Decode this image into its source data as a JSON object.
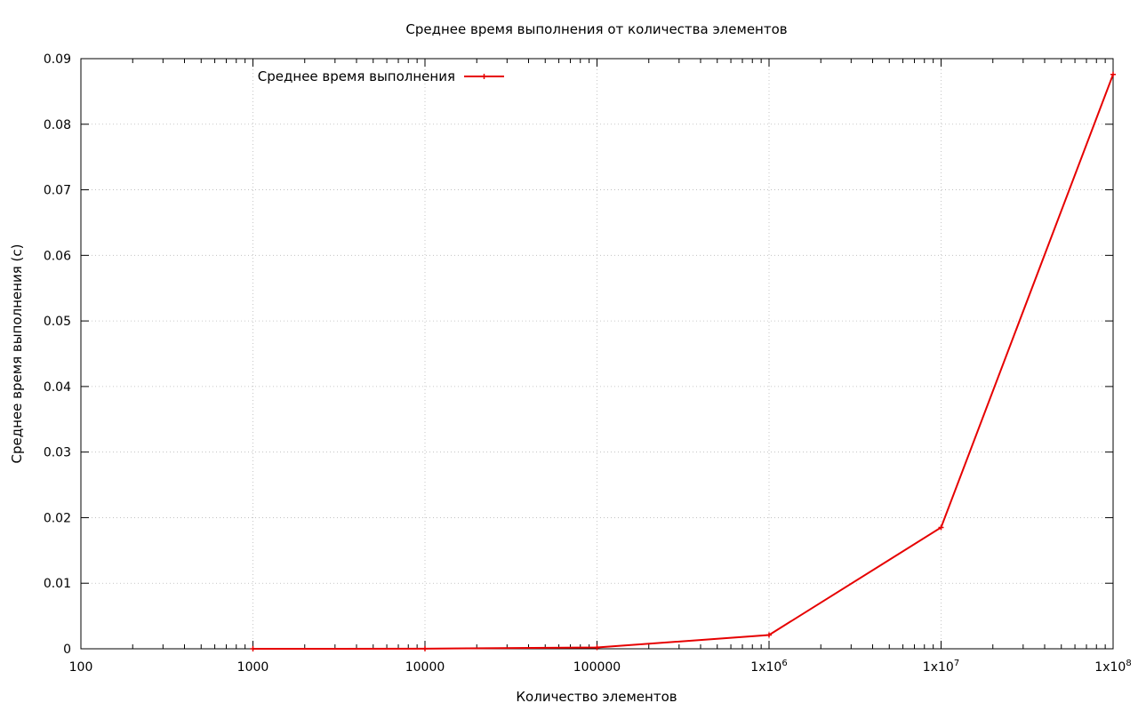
{
  "chart_data": {
    "type": "line",
    "title": "Среднее время выполнения от количества элементов",
    "xlabel": "Количество элементов",
    "ylabel": "Среднее время выполнения (с)",
    "x_scale": "log",
    "xlim": [
      100,
      100000000
    ],
    "ylim": [
      0,
      0.09
    ],
    "grid": true,
    "legend_position": "top-left",
    "x_ticks": [
      {
        "value": 100,
        "label": "100"
      },
      {
        "value": 1000,
        "label": "1000"
      },
      {
        "value": 10000,
        "label": "10000"
      },
      {
        "value": 100000,
        "label": "100000"
      },
      {
        "value": 1000000,
        "label": "1x10",
        "exp": "6"
      },
      {
        "value": 10000000,
        "label": "1x10",
        "exp": "7"
      },
      {
        "value": 100000000,
        "label": "1x10",
        "exp": "8"
      }
    ],
    "y_ticks": [
      {
        "value": 0,
        "label": "0"
      },
      {
        "value": 0.01,
        "label": "0.01"
      },
      {
        "value": 0.02,
        "label": "0.02"
      },
      {
        "value": 0.03,
        "label": "0.03"
      },
      {
        "value": 0.04,
        "label": "0.04"
      },
      {
        "value": 0.05,
        "label": "0.05"
      },
      {
        "value": 0.06,
        "label": "0.06"
      },
      {
        "value": 0.07,
        "label": "0.07"
      },
      {
        "value": 0.08,
        "label": "0.08"
      },
      {
        "value": 0.09,
        "label": "0.09"
      }
    ],
    "series": [
      {
        "name": "Среднее время выполнения",
        "color": "#e60000",
        "x": [
          1000,
          10000,
          100000,
          1000000,
          10000000,
          100000000
        ],
        "y": [
          3e-06,
          2e-05,
          0.0002,
          0.0021,
          0.0185,
          0.0876
        ]
      }
    ]
  }
}
